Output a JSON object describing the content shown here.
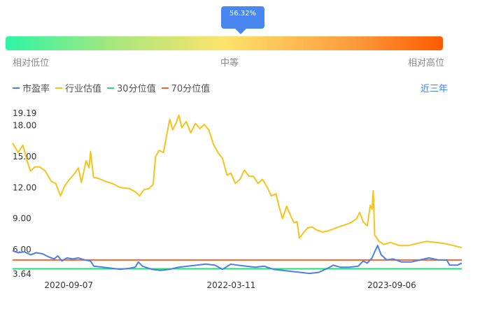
{
  "gauge": {
    "percentile": 56.32,
    "tooltip": "56.32%",
    "labels": {
      "low": "相对低位",
      "mid": "中等",
      "high": "相对高位"
    }
  },
  "legend": [
    {
      "label": "市盈率",
      "color": "#4a7ee8"
    },
    {
      "label": "行业估值",
      "color": "#f7c21a"
    },
    {
      "label": "30分位值",
      "color": "#22dd7a"
    },
    {
      "label": "70分位值",
      "color": "#f2662a"
    }
  ],
  "range_link": "近三年",
  "chart_data": {
    "type": "line",
    "ylim": [
      3.64,
      19.19
    ],
    "yticks": [
      "3.64",
      "6.00",
      "9.00",
      "12.00",
      "15.00",
      "18.00",
      "19.19"
    ],
    "xticks": [
      "2020-09-07",
      "2022-03-11",
      "2023-09-06"
    ],
    "x_start": "2020-03-01",
    "x_end": "2024-04-30",
    "series": [
      {
        "name": "行业估值",
        "color": "#f7c21a",
        "points": [
          [
            "2020-03-01",
            16.3
          ],
          [
            "2020-03-20",
            15.4
          ],
          [
            "2020-04-05",
            16.1
          ],
          [
            "2020-04-20",
            14.5
          ],
          [
            "2020-05-01",
            13.6
          ],
          [
            "2020-05-15",
            14.0
          ],
          [
            "2020-06-01",
            14.0
          ],
          [
            "2020-06-20",
            13.6
          ],
          [
            "2020-07-10",
            12.6
          ],
          [
            "2020-07-25",
            12.4
          ],
          [
            "2020-08-10",
            11.2
          ],
          [
            "2020-08-25",
            12.2
          ],
          [
            "2020-09-10",
            12.8
          ],
          [
            "2020-09-25",
            13.3
          ],
          [
            "2020-10-10",
            13.9
          ],
          [
            "2020-10-20",
            12.5
          ],
          [
            "2020-11-05",
            14.6
          ],
          [
            "2020-11-15",
            13.9
          ],
          [
            "2020-11-20",
            15.5
          ],
          [
            "2020-11-30",
            13.0
          ],
          [
            "2020-12-15",
            12.9
          ],
          [
            "2021-01-10",
            12.6
          ],
          [
            "2021-02-01",
            12.4
          ],
          [
            "2021-03-01",
            12.0
          ],
          [
            "2021-04-01",
            11.9
          ],
          [
            "2021-04-20",
            11.6
          ],
          [
            "2021-05-05",
            11.2
          ],
          [
            "2021-05-20",
            11.8
          ],
          [
            "2021-06-05",
            11.9
          ],
          [
            "2021-06-20",
            12.3
          ],
          [
            "2021-06-28",
            15.0
          ],
          [
            "2021-07-10",
            15.6
          ],
          [
            "2021-07-25",
            15.4
          ],
          [
            "2021-08-05",
            17.1
          ],
          [
            "2021-08-15",
            18.6
          ],
          [
            "2021-08-25",
            17.6
          ],
          [
            "2021-09-05",
            18.2
          ],
          [
            "2021-09-15",
            19.0
          ],
          [
            "2021-09-25",
            17.8
          ],
          [
            "2021-10-10",
            18.4
          ],
          [
            "2021-10-25",
            17.3
          ],
          [
            "2021-11-10",
            18.2
          ],
          [
            "2021-11-25",
            17.7
          ],
          [
            "2021-12-10",
            18.1
          ],
          [
            "2021-12-25",
            17.6
          ],
          [
            "2022-01-10",
            16.2
          ],
          [
            "2022-01-25",
            15.4
          ],
          [
            "2022-02-10",
            14.8
          ],
          [
            "2022-02-25",
            13.2
          ],
          [
            "2022-03-10",
            13.4
          ],
          [
            "2022-03-25",
            12.4
          ],
          [
            "2022-04-10",
            12.8
          ],
          [
            "2022-04-25",
            13.7
          ],
          [
            "2022-05-10",
            13.1
          ],
          [
            "2022-05-25",
            13.1
          ],
          [
            "2022-06-10",
            12.4
          ],
          [
            "2022-06-25",
            12.8
          ],
          [
            "2022-07-10",
            12.1
          ],
          [
            "2022-07-25",
            11.2
          ],
          [
            "2022-08-10",
            11.4
          ],
          [
            "2022-08-20",
            10.2
          ],
          [
            "2022-09-01",
            9.0
          ],
          [
            "2022-09-15",
            10.2
          ],
          [
            "2022-10-01",
            9.1
          ],
          [
            "2022-10-10",
            8.6
          ],
          [
            "2022-10-20",
            8.7
          ],
          [
            "2022-10-28",
            7.1
          ],
          [
            "2022-11-10",
            7.6
          ],
          [
            "2022-11-25",
            8.1
          ],
          [
            "2022-12-10",
            8.2
          ],
          [
            "2022-12-25",
            7.9
          ],
          [
            "2023-01-15",
            7.7
          ],
          [
            "2023-02-01",
            7.8
          ],
          [
            "2023-02-20",
            8.0
          ],
          [
            "2023-03-10",
            8.2
          ],
          [
            "2023-04-01",
            8.4
          ],
          [
            "2023-04-20",
            8.6
          ],
          [
            "2023-05-10",
            9.0
          ],
          [
            "2023-05-20",
            9.6
          ],
          [
            "2023-06-01",
            8.7
          ],
          [
            "2023-06-15",
            8.3
          ],
          [
            "2023-06-25",
            10.3
          ],
          [
            "2023-07-01",
            9.9
          ],
          [
            "2023-07-05",
            11.7
          ],
          [
            "2023-07-10",
            7.4
          ],
          [
            "2023-07-25",
            6.8
          ],
          [
            "2023-08-10",
            6.5
          ],
          [
            "2023-09-01",
            6.7
          ],
          [
            "2023-10-01",
            6.4
          ],
          [
            "2023-11-01",
            6.4
          ],
          [
            "2023-12-01",
            6.6
          ],
          [
            "2024-01-01",
            6.8
          ],
          [
            "2024-02-01",
            6.7
          ],
          [
            "2024-03-01",
            6.6
          ],
          [
            "2024-04-01",
            6.4
          ],
          [
            "2024-04-30",
            6.2
          ]
        ]
      },
      {
        "name": "市盈率",
        "color": "#4a7ee8",
        "points": [
          [
            "2020-03-01",
            5.9
          ],
          [
            "2020-03-20",
            5.7
          ],
          [
            "2020-04-10",
            5.8
          ],
          [
            "2020-05-01",
            5.5
          ],
          [
            "2020-05-20",
            5.7
          ],
          [
            "2020-06-10",
            5.6
          ],
          [
            "2020-07-01",
            5.3
          ],
          [
            "2020-07-20",
            5.1
          ],
          [
            "2020-08-01",
            5.4
          ],
          [
            "2020-08-15",
            4.9
          ],
          [
            "2020-09-01",
            5.2
          ],
          [
            "2020-09-20",
            5.1
          ],
          [
            "2020-10-10",
            5.2
          ],
          [
            "2020-11-01",
            5.0
          ],
          [
            "2020-11-20",
            4.9
          ],
          [
            "2020-12-01",
            4.4
          ],
          [
            "2021-01-01",
            4.3
          ],
          [
            "2021-02-01",
            4.2
          ],
          [
            "2021-03-01",
            4.1
          ],
          [
            "2021-04-01",
            4.2
          ],
          [
            "2021-04-20",
            4.3
          ],
          [
            "2021-05-01",
            4.8
          ],
          [
            "2021-05-15",
            4.4
          ],
          [
            "2021-06-15",
            4.1
          ],
          [
            "2021-07-15",
            4.0
          ],
          [
            "2021-08-15",
            4.1
          ],
          [
            "2021-09-15",
            4.3
          ],
          [
            "2021-10-15",
            4.4
          ],
          [
            "2021-11-15",
            4.5
          ],
          [
            "2021-12-15",
            4.6
          ],
          [
            "2022-01-15",
            4.5
          ],
          [
            "2022-02-10",
            4.1
          ],
          [
            "2022-03-10",
            4.6
          ],
          [
            "2022-04-01",
            4.5
          ],
          [
            "2022-05-01",
            4.4
          ],
          [
            "2022-06-01",
            4.3
          ],
          [
            "2022-07-01",
            4.4
          ],
          [
            "2022-08-01",
            4.1
          ],
          [
            "2022-09-01",
            4.0
          ],
          [
            "2022-10-01",
            3.9
          ],
          [
            "2022-11-01",
            3.8
          ],
          [
            "2022-12-01",
            3.7
          ],
          [
            "2023-01-01",
            3.8
          ],
          [
            "2023-02-01",
            4.2
          ],
          [
            "2023-02-20",
            4.5
          ],
          [
            "2023-03-15",
            4.3
          ],
          [
            "2023-04-15",
            4.3
          ],
          [
            "2023-05-15",
            4.4
          ],
          [
            "2023-06-01",
            4.9
          ],
          [
            "2023-06-15",
            4.7
          ],
          [
            "2023-07-01",
            5.2
          ],
          [
            "2023-07-10",
            5.8
          ],
          [
            "2023-07-20",
            6.4
          ],
          [
            "2023-08-01",
            5.5
          ],
          [
            "2023-08-20",
            5.0
          ],
          [
            "2023-09-10",
            5.1
          ],
          [
            "2023-10-10",
            4.8
          ],
          [
            "2023-11-10",
            4.8
          ],
          [
            "2023-12-10",
            5.0
          ],
          [
            "2024-01-10",
            5.2
          ],
          [
            "2024-02-10",
            5.0
          ],
          [
            "2024-03-10",
            5.0
          ],
          [
            "2024-03-20",
            4.5
          ],
          [
            "2024-04-15",
            4.5
          ],
          [
            "2024-04-30",
            4.7
          ]
        ]
      },
      {
        "name": "30分位值",
        "color": "#22dd7a",
        "points": [
          [
            "2020-03-01",
            4.15
          ],
          [
            "2024-04-30",
            4.15
          ]
        ]
      },
      {
        "name": "70分位值",
        "color": "#f2662a",
        "points": [
          [
            "2020-03-01",
            5.0
          ],
          [
            "2024-04-30",
            5.0
          ]
        ]
      }
    ]
  }
}
